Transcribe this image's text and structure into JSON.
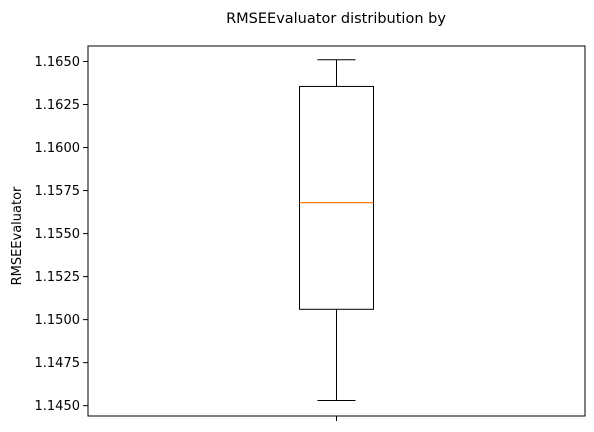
{
  "chart_data": {
    "type": "box",
    "title": "RMSEEvaluator distribution by",
    "xlabel": "",
    "ylabel": "RMSEEvaluator",
    "categories": [
      ""
    ],
    "series": [
      {
        "whisker_low": 1.1453,
        "q1": 1.1506,
        "median": 1.1568,
        "q3": 1.16355,
        "whisker_high": 1.1651
      }
    ],
    "ylim": [
      1.1444,
      1.1659
    ],
    "yticks": [
      "1.1450",
      "1.1475",
      "1.1500",
      "1.1525",
      "1.1550",
      "1.1575",
      "1.1600",
      "1.1625",
      "1.1650"
    ],
    "colors": {
      "box": "#000000",
      "median": "#ff7f0e",
      "whisker": "#000000"
    },
    "grid": false,
    "legend": "none"
  }
}
